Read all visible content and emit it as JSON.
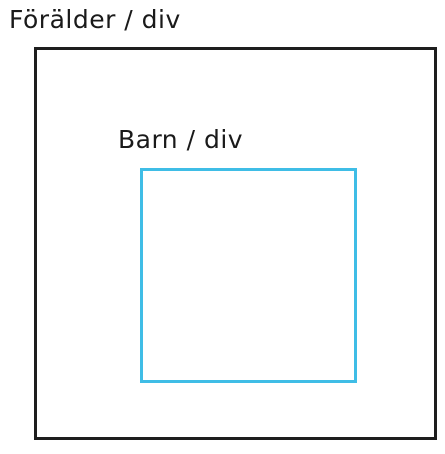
{
  "parent": {
    "label": "Förälder / div",
    "border_color": "#1e1e1e"
  },
  "child": {
    "label": "Barn / div",
    "border_color": "#3fbde6"
  }
}
